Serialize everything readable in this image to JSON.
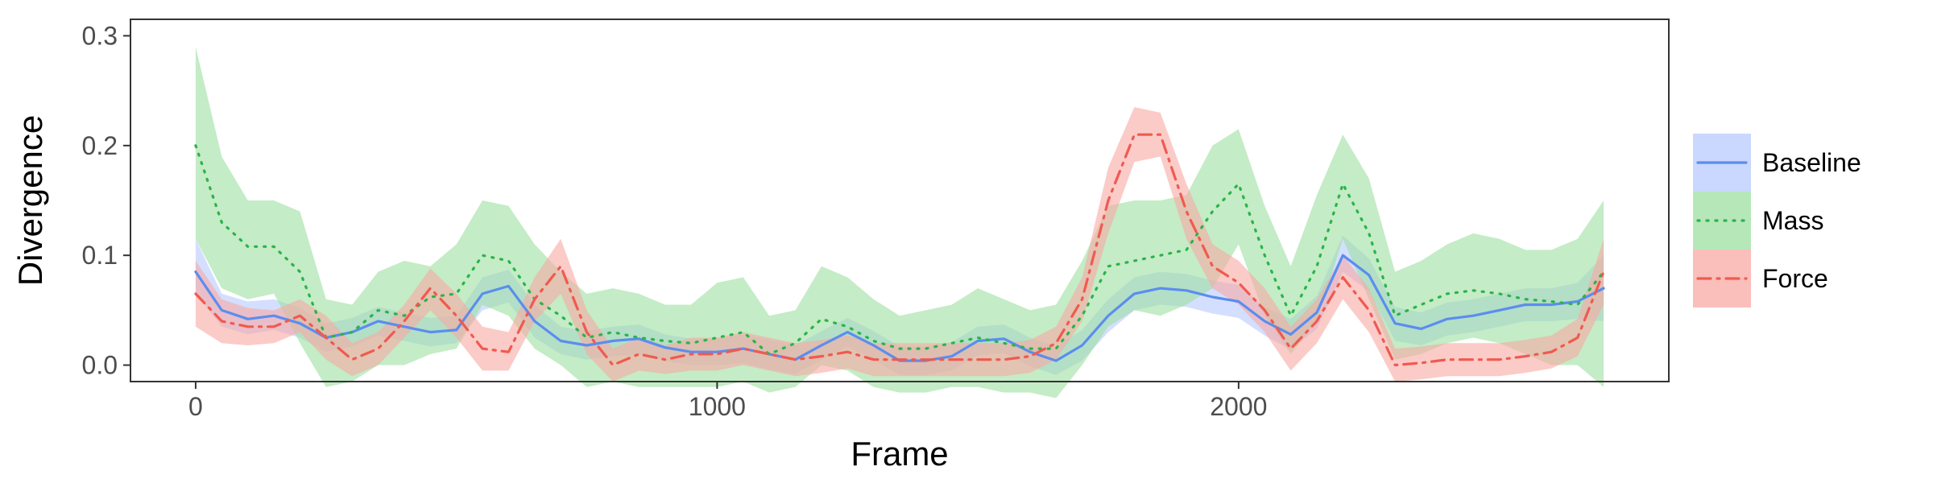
{
  "chart_data": {
    "type": "line",
    "title": "",
    "xlabel": "Frame",
    "ylabel": "Divergence",
    "xlim": [
      -125,
      2825
    ],
    "ylim": [
      -0.015,
      0.315
    ],
    "xticks": [
      0,
      1000,
      2000
    ],
    "xtick_labels": [
      "0",
      "1000",
      "2000"
    ],
    "yticks": [
      0.0,
      0.1,
      0.2,
      0.3
    ],
    "ytick_labels": [
      "0.0",
      "0.1",
      "0.2",
      "0.3"
    ],
    "grid": false,
    "legend_position": "right",
    "series": [
      {
        "name": "Baseline",
        "color": "#5b8def",
        "band_color": "#b8c9ff",
        "line_style": "solid",
        "x": [
          0,
          50,
          100,
          150,
          200,
          250,
          300,
          350,
          400,
          450,
          500,
          550,
          600,
          650,
          700,
          750,
          800,
          850,
          900,
          950,
          1000,
          1050,
          1100,
          1150,
          1200,
          1250,
          1300,
          1350,
          1400,
          1450,
          1500,
          1550,
          1600,
          1650,
          1700,
          1750,
          1800,
          1850,
          1900,
          1950,
          2000,
          2050,
          2100,
          2150,
          2200,
          2250,
          2300,
          2350,
          2400,
          2450,
          2500,
          2550,
          2600,
          2650,
          2700
        ],
        "y": [
          0.085,
          0.05,
          0.042,
          0.045,
          0.038,
          0.025,
          0.03,
          0.04,
          0.035,
          0.03,
          0.032,
          0.065,
          0.072,
          0.04,
          0.022,
          0.018,
          0.022,
          0.024,
          0.016,
          0.012,
          0.012,
          0.015,
          0.01,
          0.005,
          0.018,
          0.03,
          0.018,
          0.004,
          0.004,
          0.008,
          0.022,
          0.024,
          0.012,
          0.004,
          0.018,
          0.045,
          0.065,
          0.07,
          0.068,
          0.062,
          0.058,
          0.04,
          0.028,
          0.048,
          0.1,
          0.082,
          0.038,
          0.033,
          0.042,
          0.045,
          0.05,
          0.055,
          0.055,
          0.058,
          0.07
        ],
        "lower": [
          0.065,
          0.035,
          0.028,
          0.032,
          0.025,
          0.012,
          0.017,
          0.027,
          0.022,
          0.017,
          0.02,
          0.05,
          0.057,
          0.025,
          0.01,
          0.005,
          0.008,
          0.01,
          0.004,
          0.0,
          0.0,
          0.002,
          -0.004,
          -0.008,
          0.005,
          0.017,
          0.005,
          -0.009,
          -0.009,
          -0.005,
          0.009,
          0.011,
          -0.001,
          -0.009,
          0.004,
          0.03,
          0.05,
          0.055,
          0.053,
          0.047,
          0.043,
          0.027,
          0.014,
          0.033,
          0.085,
          0.067,
          0.022,
          0.018,
          0.027,
          0.03,
          0.035,
          0.04,
          0.04,
          0.042,
          0.04
        ],
        "upper": [
          0.115,
          0.065,
          0.058,
          0.06,
          0.052,
          0.038,
          0.043,
          0.053,
          0.048,
          0.043,
          0.045,
          0.08,
          0.087,
          0.055,
          0.035,
          0.031,
          0.035,
          0.037,
          0.028,
          0.024,
          0.024,
          0.028,
          0.023,
          0.018,
          0.031,
          0.043,
          0.031,
          0.017,
          0.017,
          0.021,
          0.035,
          0.037,
          0.025,
          0.017,
          0.032,
          0.06,
          0.08,
          0.085,
          0.083,
          0.077,
          0.073,
          0.053,
          0.042,
          0.063,
          0.118,
          0.097,
          0.053,
          0.048,
          0.057,
          0.06,
          0.065,
          0.07,
          0.07,
          0.075,
          0.1
        ]
      },
      {
        "name": "Mass",
        "color": "#2bb34a",
        "band_color": "#9ddfa0",
        "line_style": "dotted",
        "x": [
          0,
          50,
          100,
          150,
          200,
          250,
          300,
          350,
          400,
          450,
          500,
          550,
          600,
          650,
          700,
          750,
          800,
          850,
          900,
          950,
          1000,
          1050,
          1100,
          1150,
          1200,
          1250,
          1300,
          1350,
          1400,
          1450,
          1500,
          1550,
          1600,
          1650,
          1700,
          1750,
          1800,
          1850,
          1900,
          1950,
          2000,
          2050,
          2100,
          2150,
          2200,
          2250,
          2300,
          2350,
          2400,
          2450,
          2500,
          2550,
          2600,
          2650,
          2700
        ],
        "y": [
          0.2,
          0.13,
          0.108,
          0.108,
          0.085,
          0.025,
          0.03,
          0.05,
          0.045,
          0.062,
          0.065,
          0.1,
          0.095,
          0.06,
          0.045,
          0.025,
          0.03,
          0.025,
          0.022,
          0.02,
          0.025,
          0.03,
          0.01,
          0.02,
          0.042,
          0.035,
          0.022,
          0.015,
          0.015,
          0.02,
          0.025,
          0.02,
          0.015,
          0.015,
          0.045,
          0.09,
          0.095,
          0.1,
          0.105,
          0.14,
          0.165,
          0.1,
          0.045,
          0.09,
          0.165,
          0.12,
          0.045,
          0.055,
          0.065,
          0.068,
          0.065,
          0.06,
          0.058,
          0.055,
          0.085
        ],
        "lower": [
          0.115,
          0.07,
          0.06,
          0.065,
          0.02,
          -0.02,
          -0.015,
          0.0,
          0.0,
          0.01,
          0.015,
          0.055,
          0.045,
          0.015,
          0.0,
          -0.02,
          -0.015,
          -0.02,
          -0.02,
          -0.02,
          -0.02,
          -0.015,
          -0.025,
          -0.02,
          0.0,
          -0.005,
          -0.02,
          -0.025,
          -0.025,
          -0.02,
          -0.02,
          -0.025,
          -0.025,
          -0.03,
          0.0,
          0.035,
          0.05,
          0.045,
          0.055,
          0.07,
          0.11,
          0.045,
          0.01,
          0.04,
          0.115,
          0.06,
          0.005,
          0.01,
          0.02,
          0.025,
          0.02,
          0.01,
          0.0,
          0.0,
          -0.02
        ],
        "upper": [
          0.29,
          0.19,
          0.15,
          0.15,
          0.14,
          0.06,
          0.055,
          0.085,
          0.095,
          0.09,
          0.11,
          0.15,
          0.145,
          0.11,
          0.085,
          0.065,
          0.07,
          0.065,
          0.055,
          0.055,
          0.075,
          0.08,
          0.045,
          0.05,
          0.09,
          0.08,
          0.06,
          0.045,
          0.05,
          0.055,
          0.07,
          0.06,
          0.05,
          0.055,
          0.095,
          0.145,
          0.15,
          0.15,
          0.155,
          0.2,
          0.215,
          0.145,
          0.09,
          0.155,
          0.21,
          0.17,
          0.085,
          0.095,
          0.11,
          0.12,
          0.115,
          0.105,
          0.105,
          0.115,
          0.15
        ]
      },
      {
        "name": "Force",
        "color": "#f05a4f",
        "band_color": "#f8a8a4",
        "line_style": "dashdot",
        "x": [
          0,
          50,
          100,
          150,
          200,
          250,
          300,
          350,
          400,
          450,
          500,
          550,
          600,
          650,
          700,
          750,
          800,
          850,
          900,
          950,
          1000,
          1050,
          1100,
          1150,
          1200,
          1250,
          1300,
          1350,
          1400,
          1450,
          1500,
          1550,
          1600,
          1650,
          1700,
          1750,
          1800,
          1850,
          1900,
          1950,
          2000,
          2050,
          2100,
          2150,
          2200,
          2250,
          2300,
          2350,
          2400,
          2450,
          2500,
          2550,
          2600,
          2650,
          2700
        ],
        "y": [
          0.065,
          0.04,
          0.035,
          0.035,
          0.045,
          0.025,
          0.005,
          0.015,
          0.04,
          0.07,
          0.045,
          0.015,
          0.012,
          0.06,
          0.09,
          0.03,
          0.0,
          0.01,
          0.005,
          0.01,
          0.01,
          0.015,
          0.01,
          0.005,
          0.008,
          0.012,
          0.005,
          0.005,
          0.005,
          0.005,
          0.005,
          0.005,
          0.008,
          0.02,
          0.06,
          0.15,
          0.21,
          0.21,
          0.14,
          0.09,
          0.075,
          0.05,
          0.015,
          0.04,
          0.08,
          0.05,
          0.0,
          0.002,
          0.005,
          0.005,
          0.005,
          0.008,
          0.012,
          0.025,
          0.085
        ],
        "lower": [
          0.035,
          0.02,
          0.018,
          0.02,
          0.03,
          0.005,
          -0.01,
          0.0,
          0.025,
          0.05,
          0.025,
          -0.005,
          -0.005,
          0.04,
          0.065,
          0.01,
          -0.015,
          -0.005,
          -0.008,
          -0.005,
          -0.005,
          0.0,
          -0.005,
          -0.01,
          -0.007,
          -0.003,
          -0.01,
          -0.01,
          -0.01,
          -0.01,
          -0.01,
          -0.01,
          -0.007,
          0.005,
          0.04,
          0.12,
          0.185,
          0.19,
          0.115,
          0.07,
          0.055,
          0.03,
          -0.005,
          0.02,
          0.06,
          0.03,
          -0.015,
          -0.013,
          -0.01,
          -0.01,
          -0.01,
          -0.007,
          -0.003,
          0.008,
          0.055
        ],
        "upper": [
          0.095,
          0.06,
          0.052,
          0.05,
          0.06,
          0.045,
          0.02,
          0.03,
          0.055,
          0.088,
          0.065,
          0.035,
          0.03,
          0.08,
          0.115,
          0.05,
          0.015,
          0.025,
          0.018,
          0.025,
          0.025,
          0.03,
          0.025,
          0.02,
          0.023,
          0.027,
          0.02,
          0.02,
          0.02,
          0.02,
          0.02,
          0.02,
          0.023,
          0.035,
          0.08,
          0.18,
          0.235,
          0.23,
          0.165,
          0.11,
          0.095,
          0.07,
          0.035,
          0.06,
          0.1,
          0.07,
          0.015,
          0.017,
          0.02,
          0.02,
          0.02,
          0.023,
          0.027,
          0.042,
          0.115
        ]
      }
    ]
  }
}
